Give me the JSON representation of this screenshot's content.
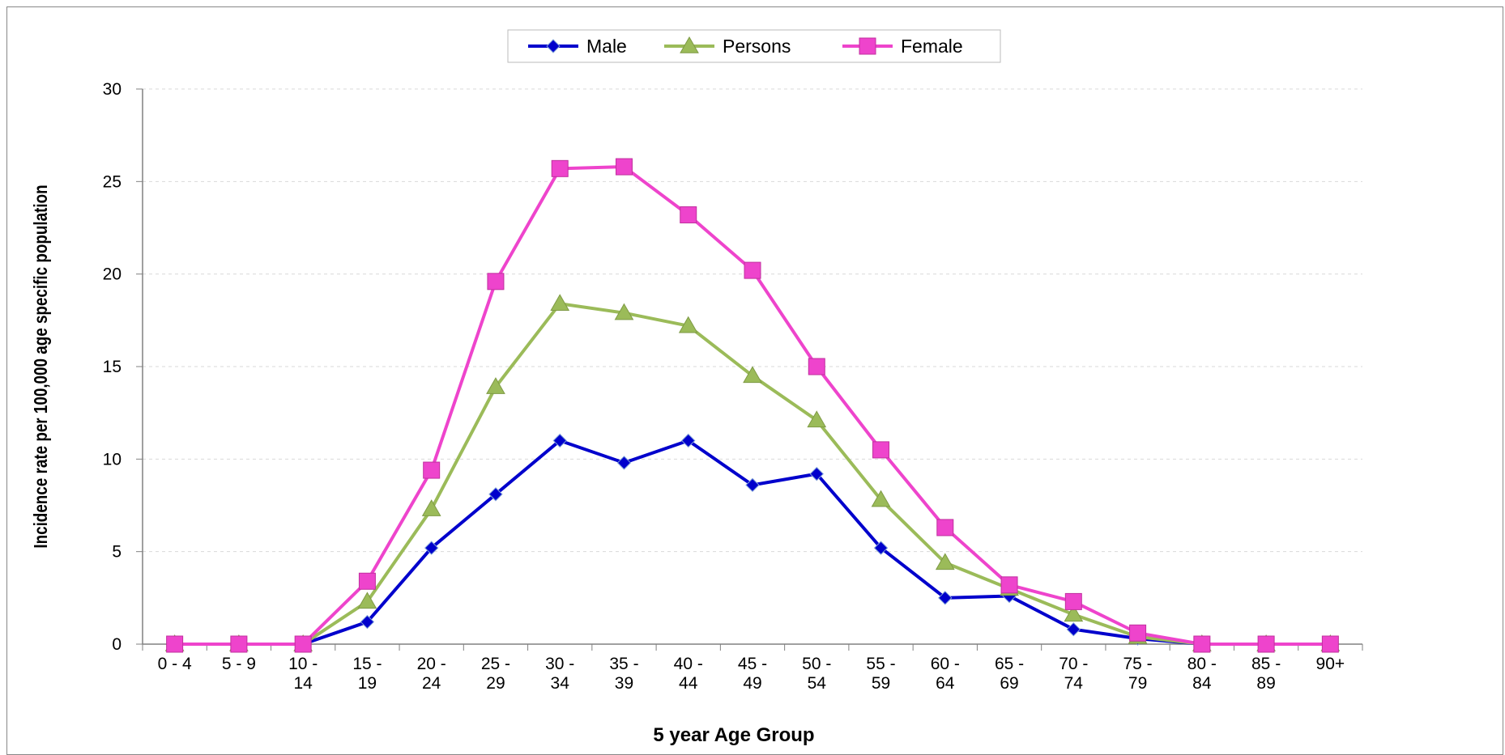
{
  "chart_data": {
    "type": "line",
    "title": "",
    "xlabel": "5 year Age Group",
    "ylabel": "Incidence rate per 100,000 age specific population",
    "categories": [
      [
        "0 - 4"
      ],
      [
        "5 - 9"
      ],
      [
        "10 -",
        "14"
      ],
      [
        "15 -",
        "19"
      ],
      [
        "20 -",
        "24"
      ],
      [
        "25 -",
        "29"
      ],
      [
        "30 -",
        "34"
      ],
      [
        "35 -",
        "39"
      ],
      [
        "40 -",
        "44"
      ],
      [
        "45 -",
        "49"
      ],
      [
        "50 -",
        "54"
      ],
      [
        "55 -",
        "59"
      ],
      [
        "60 -",
        "64"
      ],
      [
        "65 -",
        "69"
      ],
      [
        "70 -",
        "74"
      ],
      [
        "75 -",
        "79"
      ],
      [
        "80 -",
        "84"
      ],
      [
        "85 -",
        "89"
      ],
      [
        "90+"
      ]
    ],
    "ylim": [
      0,
      30
    ],
    "yticks": [
      0,
      5,
      10,
      15,
      20,
      25,
      30
    ],
    "grid": "horizontal dashed",
    "legend_position": "top-center",
    "series": [
      {
        "name": "Male",
        "color": "#0000CC",
        "marker": "diamond",
        "values": [
          0,
          0,
          0,
          1.2,
          5.2,
          8.1,
          11.0,
          9.8,
          11.0,
          8.6,
          9.2,
          5.2,
          2.5,
          2.6,
          0.8,
          0.3,
          0,
          0,
          0
        ]
      },
      {
        "name": "Persons",
        "color": "#9BBB59",
        "marker": "triangle",
        "values": [
          0,
          0,
          0,
          2.3,
          7.3,
          13.9,
          18.4,
          17.9,
          17.2,
          14.5,
          12.1,
          7.8,
          4.4,
          3.0,
          1.6,
          0.4,
          0,
          0,
          0
        ]
      },
      {
        "name": "Female",
        "color": "#EE44CC",
        "marker": "square",
        "values": [
          0,
          0,
          0,
          3.4,
          9.4,
          19.6,
          25.7,
          25.8,
          23.2,
          20.2,
          15.0,
          10.5,
          6.3,
          3.2,
          2.3,
          0.6,
          0,
          0,
          0
        ]
      }
    ]
  }
}
